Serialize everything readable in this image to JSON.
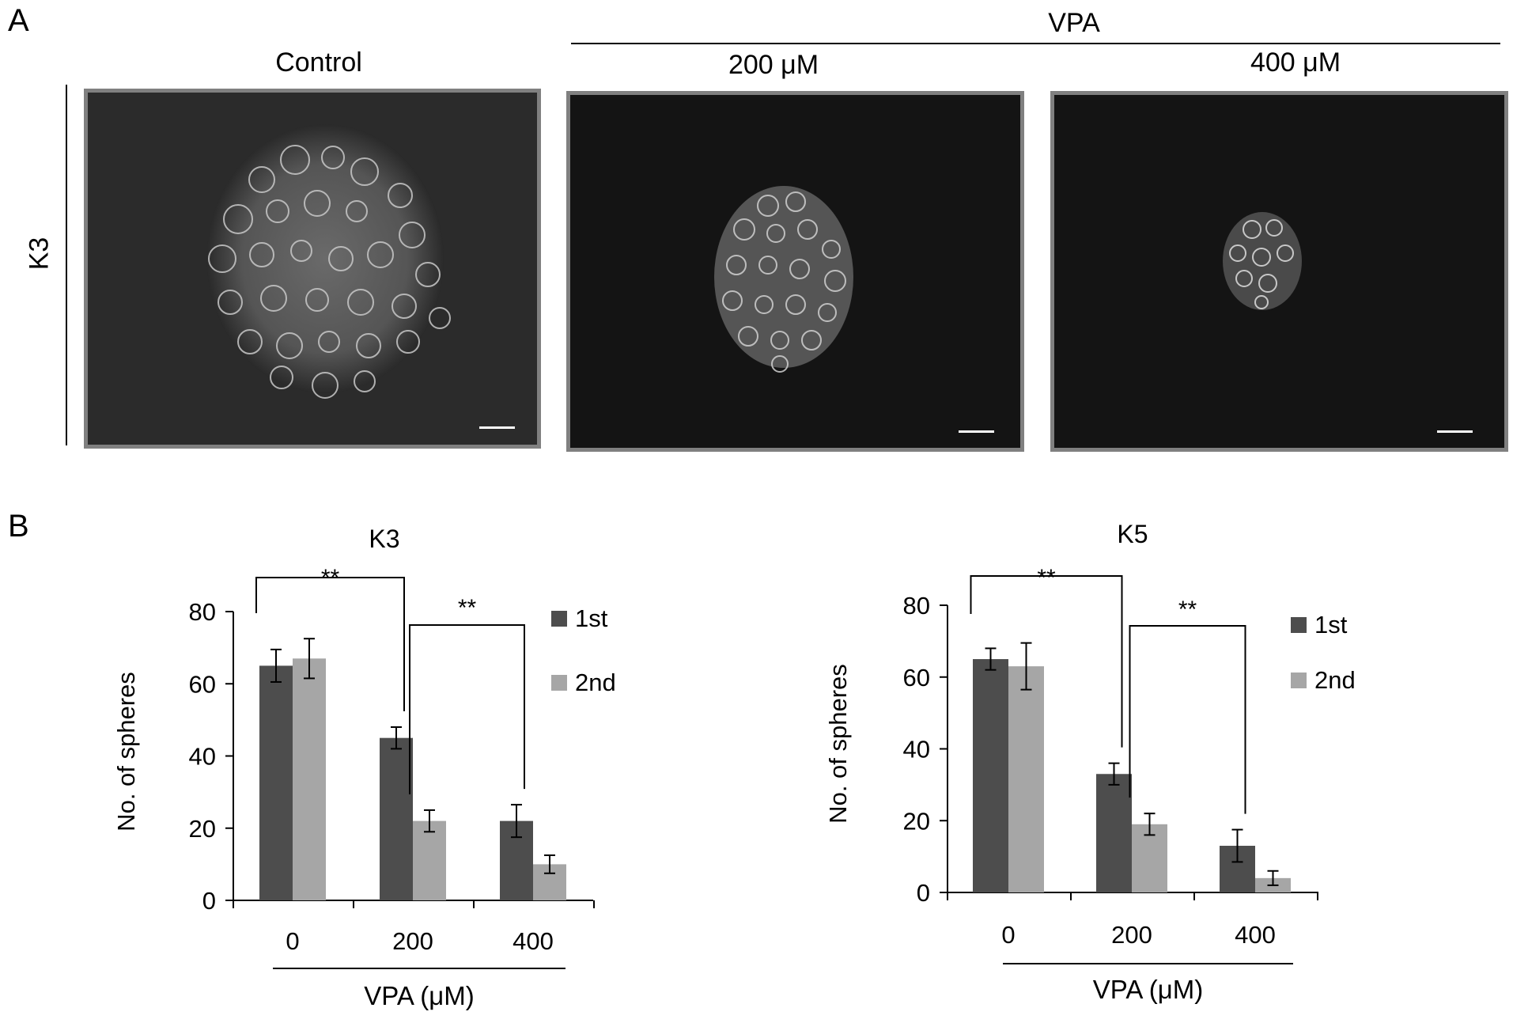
{
  "panel_a": {
    "letter": "A",
    "group_label": "VPA",
    "row_label": "K3",
    "columns": [
      {
        "label": "Control"
      },
      {
        "label": "200 μM"
      },
      {
        "label": "400 μM"
      }
    ]
  },
  "panel_b": {
    "letter": "B"
  },
  "colors": {
    "first": "#4d4d4d",
    "second": "#a6a6a6",
    "micrograph_bg": "#141414",
    "frame": "#808080"
  },
  "chart_data": [
    {
      "type": "bar",
      "title": "K3",
      "categories": [
        "0",
        "200",
        "400"
      ],
      "series": [
        {
          "name": "1st",
          "values": [
            65,
            45,
            22
          ],
          "errors": [
            4.5,
            3,
            4.5
          ]
        },
        {
          "name": "2nd",
          "values": [
            67,
            22,
            10
          ],
          "errors": [
            5.5,
            3,
            2.5
          ]
        }
      ],
      "xlabel": "VPA (μM)",
      "ylabel": "No. of spheres",
      "ylim": [
        0,
        80
      ],
      "yticks": [
        0,
        20,
        40,
        60,
        80
      ],
      "grid": false,
      "legend_position": "right",
      "significance": [
        {
          "from_category": "0",
          "to_category": "200",
          "label": "**"
        },
        {
          "from_category": "200",
          "to_category": "400",
          "label": "**"
        }
      ]
    },
    {
      "type": "bar",
      "title": "K5",
      "categories": [
        "0",
        "200",
        "400"
      ],
      "series": [
        {
          "name": "1st",
          "values": [
            65,
            33,
            13
          ],
          "errors": [
            3,
            3,
            4.5
          ]
        },
        {
          "name": "2nd",
          "values": [
            63,
            19,
            4
          ],
          "errors": [
            6.5,
            3,
            2
          ]
        }
      ],
      "xlabel": "VPA (μM)",
      "ylabel": "No. of spheres",
      "ylim": [
        0,
        80
      ],
      "yticks": [
        0,
        20,
        40,
        60,
        80
      ],
      "grid": false,
      "legend_position": "right",
      "significance": [
        {
          "from_category": "0",
          "to_category": "200",
          "label": "**"
        },
        {
          "from_category": "200",
          "to_category": "400",
          "label": "**"
        }
      ]
    }
  ]
}
